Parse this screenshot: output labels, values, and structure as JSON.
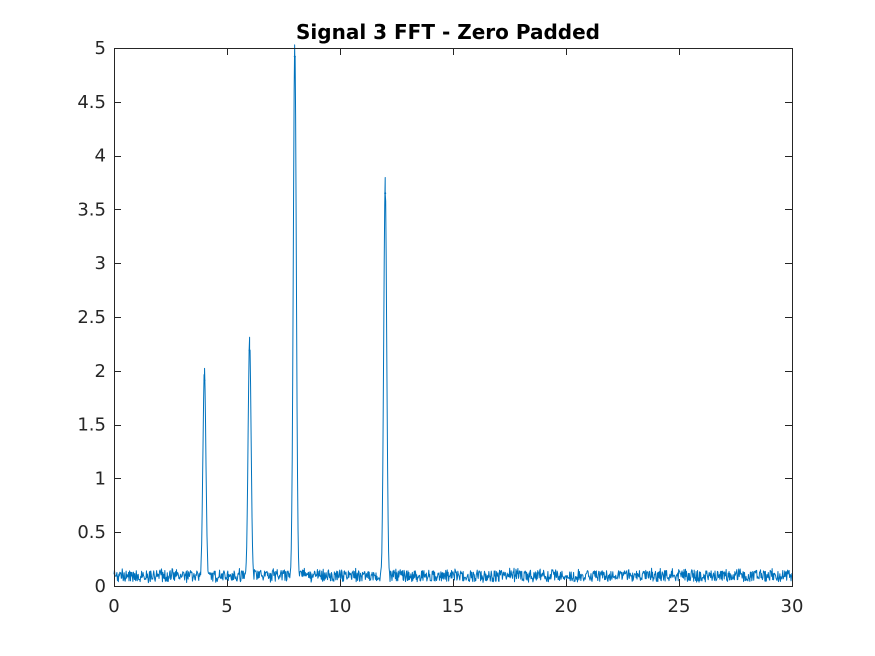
{
  "chart_data": {
    "type": "line",
    "title": "Signal 3 FFT - Zero Padded",
    "xlabel": "",
    "ylabel": "",
    "xlim": [
      0,
      30
    ],
    "ylim": [
      0,
      5
    ],
    "xticks": [
      0,
      5,
      10,
      15,
      20,
      25,
      30
    ],
    "xtick_labels": [
      "0",
      "5",
      "10",
      "15",
      "20",
      "25",
      "30"
    ],
    "yticks": [
      0,
      0.5,
      1,
      1.5,
      2,
      2.5,
      3,
      3.5,
      4,
      4.5,
      5
    ],
    "ytick_labels": [
      "0",
      "0.5",
      "1",
      "1.5",
      "2",
      "2.5",
      "3",
      "3.5",
      "4",
      "4.5",
      "5"
    ],
    "grid": false,
    "legend": "none",
    "series": [
      {
        "color": "#0072BD",
        "noise_floor": 0.12,
        "peaks": [
          {
            "x": 4.0,
            "y": 1.91
          },
          {
            "x": 6.0,
            "y": 2.19
          },
          {
            "x": 8.0,
            "y": 4.92
          },
          {
            "x": 12.0,
            "y": 3.65
          }
        ]
      }
    ]
  }
}
